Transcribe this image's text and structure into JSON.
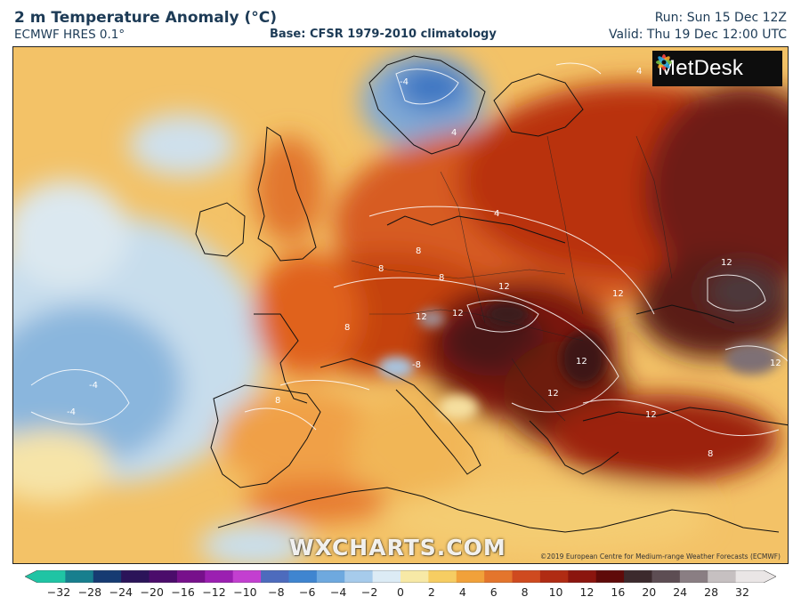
{
  "header": {
    "title": "2 m Temperature Anomaly (°C)",
    "model": "ECMWF HRES 0.1°",
    "base": "Base: CFSR 1979-2010 climatology",
    "run": "Run: Sun 15 Dec 12Z",
    "valid": "Valid: Thu 19 Dec 12:00 UTC"
  },
  "logo": {
    "text": "MetDesk"
  },
  "watermark": "WXCHARTS.COM",
  "copyright": "©2019 European Centre for Medium-range Weather Forecasts (ECMWF)",
  "contour_labels": [
    "8",
    "8",
    "8",
    "12",
    "12",
    "12",
    "12",
    "12",
    "8",
    "12",
    "-8",
    "4",
    "-4",
    "-4",
    "12",
    "8",
    "8",
    "12",
    "-4",
    "12",
    "4",
    "4"
  ],
  "colorbar": {
    "ticks": [
      "−32",
      "−28",
      "−24",
      "−20",
      "−16",
      "−12",
      "−10",
      "−8",
      "−6",
      "−4",
      "−2",
      "0",
      "2",
      "4",
      "6",
      "8",
      "10",
      "12",
      "16",
      "20",
      "24",
      "28",
      "32"
    ],
    "colors": [
      "#1fc4a4",
      "#177f8e",
      "#163b72",
      "#2b1459",
      "#4b0c6b",
      "#77108b",
      "#9b1fb1",
      "#c33fd0",
      "#4d6bbd",
      "#3f85d0",
      "#6ea9df",
      "#a6cbeb",
      "#dcebf5",
      "#f7e9a6",
      "#f6cd62",
      "#f1a13a",
      "#e4752c",
      "#cf4a1f",
      "#b02b13",
      "#8b150e",
      "#5f0a09",
      "#3c2a2d",
      "#5d4d53",
      "#8a7e83",
      "#c6c0c1",
      "#eae6e6"
    ]
  }
}
